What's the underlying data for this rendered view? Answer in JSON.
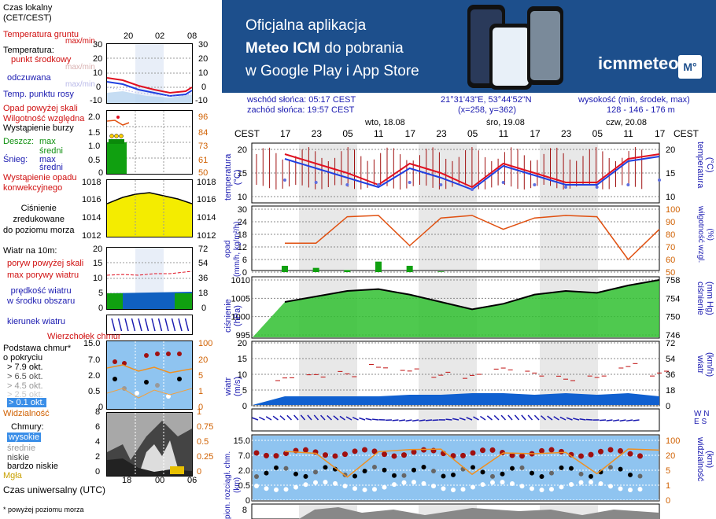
{
  "legend": {
    "time_label": "Czas lokalny\n(CET/CEST)",
    "hours_top": [
      "20",
      "02",
      "08"
    ],
    "temp_soil": "Temperatura gruntu",
    "temp_soil_mm": "max/min",
    "temp_header": "Temperatura:",
    "temp_mid": "punkt środkowy",
    "temp_mid_mm": "max/min",
    "temp_feel": "odczuwana",
    "temp_feel_mm": "max/min",
    "temp_dew": "Temp. punktu rosy",
    "temp_ticks_left": [
      "30",
      "20",
      "10",
      "0",
      "-10"
    ],
    "temp_ticks_right": [
      "30",
      "20",
      "10",
      "0",
      "-10"
    ],
    "precip_above": "Opad powyżej skali",
    "humidity": "Wilgotność względna",
    "storm": "Wystąpienie burzy",
    "rain_header": "Deszcz:",
    "rain_max": "max",
    "rain_mid": "średni",
    "snow_header": "Śnieg:",
    "snow_max": "max",
    "snow_mid": "średni",
    "conv": "Wystąpienie opadu\nkonwekcyjnego",
    "precip_ticks_left": [
      "2.0",
      "1.5",
      "1.0",
      "0.5",
      "0"
    ],
    "precip_ticks_right": [
      "96",
      "84",
      "73",
      "61",
      "50"
    ],
    "pressure_label": "Ciśnienie\nzredukowane\ndo poziomu morza",
    "pressure_ticks_left": [
      "1018",
      "1016",
      "1014",
      "1012"
    ],
    "pressure_ticks_right": [
      "1018",
      "1016",
      "1014",
      "1012"
    ],
    "wind_header": "Wiatr na 10m:",
    "wind_gust_above": "poryw powyżej skali",
    "wind_gust": "max porywy wiatru",
    "wind_speed": "prędkość wiatru\nw środku obszaru",
    "wind_ticks_left": [
      "20",
      "15",
      "10",
      "5",
      "0"
    ],
    "wind_ticks_right": [
      "72",
      "54",
      "36",
      "18",
      "0"
    ],
    "wind_dir": "kierunek wiatru",
    "cloud_top": "Wierzchołek chmur",
    "cloud_base": "Podstawa chmur*\no pokryciu",
    "okt1": "> 7.9 okt.",
    "okt2": "> 6.5 okt.",
    "okt3": "> 4.5 okt.",
    "okt4": "> 2.5 okt.",
    "okt5": "> 0.1 okt.",
    "cloud_ticks_left": [
      "15.0",
      "7.0",
      "2.0",
      "0.5",
      "0"
    ],
    "cloud_ticks_right": [
      "100",
      "20",
      "5",
      "1",
      "0"
    ],
    "visibility": "Widzialność",
    "clouds_header": "Chmury:",
    "cl_high": "wysokie",
    "cl_mid": "średnie",
    "cl_low": "niskie",
    "cl_vlow": "bardzo niskie",
    "fog": "Mgła",
    "cl_ticks_left": [
      "8",
      "6",
      "4",
      "2",
      "0"
    ],
    "cl_ticks_right": [
      "1",
      "0.75",
      "0.5",
      "0.25",
      "0"
    ],
    "utc_label": "Czas uniwersalny (UTC)",
    "utc_hours": [
      "18",
      "00",
      "06"
    ],
    "footnote": "* powyżej poziomu morza"
  },
  "banner": {
    "line1": "Oficjalna aplikacja",
    "line2_bold": "Meteo ICM",
    "line2_rest": " do pobrania",
    "line3": "w Google Play i App Store",
    "logo": "icmmeteo",
    "logo_box": "M°"
  },
  "info": {
    "sunrise": "wschód słońca: 05:17 CEST",
    "sunset": "zachód słońca: 19:57 CEST",
    "coords": "21°31'43\"E, 53°44'52\"N",
    "grid": "(x=258,  y=362)",
    "height_label": "wysokość (min, środek, max)",
    "height_vals": "128 - 146 - 176 m"
  },
  "time_axis": {
    "tz": "CEST",
    "days": [
      "wto, 18.08",
      "śro, 19.08",
      "czw, 20.08"
    ],
    "hours": [
      "17",
      "23",
      "05",
      "11",
      "17",
      "23",
      "05",
      "11",
      "17",
      "23",
      "05",
      "11",
      "17"
    ]
  },
  "panel_labels": {
    "temp_l": "temperatura\n(°C)",
    "temp_r": "(°C)\ntemperatura",
    "precip_l": "opad\n(mm/h, kg/m²/h)",
    "precip_r": "(%)\nwilgotność wzgl.",
    "press_l": "ciśnienie\n(hPa)",
    "press_r": "(mm Hg)\nciśnienie",
    "wind_l": "wiatr\n(m/s)",
    "wind_r": "(km/h)\nwiatr",
    "cloud_l": "pion. rozciągł. chm.\n(km)",
    "cloud_r": "(km)\nwidzialność",
    "compass": "W N E S"
  },
  "colors": {
    "temp": "#e01020",
    "feel": "#2040e0",
    "dew": "#6070e0",
    "humidity": "#e05010",
    "rain": "#10a010",
    "pressure_fill": "#30c030",
    "wind_fill": "#1060d0",
    "cloud_bg": "#8fc4f0",
    "highlight": "#3a8ee8",
    "night": "#d8d8d8"
  },
  "chart_data": [
    {
      "type": "line",
      "title": "temperatura (°C)",
      "x": [
        "17",
        "23",
        "05",
        "11",
        "17",
        "23",
        "05",
        "11",
        "17",
        "23",
        "05",
        "11",
        "17"
      ],
      "series": [
        {
          "name": "temperatura",
          "values": [
            19,
            17,
            15,
            12.5,
            17,
            15,
            12,
            17,
            15,
            13,
            13,
            18,
            19
          ]
        },
        {
          "name": "odczuwana",
          "values": [
            18,
            16,
            14,
            12,
            16,
            14,
            11.5,
            16.5,
            14.5,
            12.5,
            12.5,
            17.5,
            18.5
          ]
        },
        {
          "name": "punkt rosy",
          "values": [
            13.5,
            13,
            12.5,
            12.5,
            13,
            12.5,
            11.5,
            13,
            12.5,
            12,
            12,
            12.5,
            13.5
          ]
        }
      ],
      "ylim": [
        10,
        20
      ]
    },
    {
      "type": "line",
      "title": "opad / wilgotność",
      "x": [
        "17",
        "23",
        "05",
        "11",
        "17",
        "23",
        "05",
        "11",
        "17",
        "23",
        "05",
        "11",
        "17"
      ],
      "series": [
        {
          "name": "wilgotność",
          "values": [
            73,
            73,
            94,
            95,
            71,
            93,
            95,
            84,
            93,
            95,
            94,
            60,
            84
          ]
        },
        {
          "name": "opad",
          "values": [
            3,
            2,
            1,
            5,
            3,
            0.3,
            0,
            0,
            0,
            0,
            0,
            0,
            0
          ]
        }
      ],
      "ylim": [
        0,
        30
      ]
    },
    {
      "type": "area",
      "title": "ciśnienie (hPa)",
      "x": [
        "17",
        "23",
        "05",
        "11",
        "17",
        "23",
        "05",
        "11",
        "17",
        "23",
        "05",
        "11",
        "17"
      ],
      "values": [
        1004,
        1005.5,
        1007,
        1007.5,
        1006,
        1004,
        1002,
        1003.5,
        1006,
        1007,
        1006.5,
        1008.5,
        1010
      ],
      "ylim": [
        995,
        1010
      ]
    },
    {
      "type": "area",
      "title": "wiatr (m/s)",
      "x": [
        "17",
        "23",
        "05",
        "11",
        "17",
        "23",
        "05",
        "11",
        "17",
        "23",
        "05",
        "11",
        "17"
      ],
      "series": [
        {
          "name": "prędkość",
          "values": [
            3,
            3,
            3,
            3,
            3.5,
            3.5,
            4,
            4,
            3.5,
            4,
            3.5,
            4,
            3
          ]
        },
        {
          "name": "porywy",
          "values": [
            8,
            9,
            10,
            13,
            12,
            10,
            9,
            11,
            10,
            9,
            10,
            13,
            10
          ]
        }
      ],
      "ylim": [
        0,
        20
      ]
    }
  ]
}
